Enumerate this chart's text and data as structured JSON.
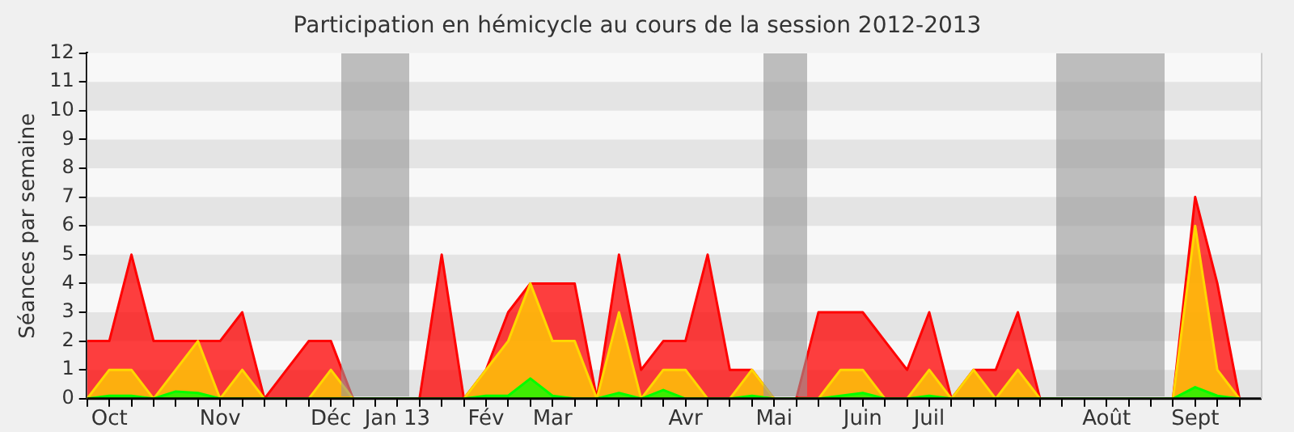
{
  "chart_data": {
    "type": "area",
    "title": "Participation en hémicycle au cours de la session 2012-2013",
    "ylabel": "Séances par semaine",
    "categories": [
      null,
      "Oct",
      null,
      null,
      null,
      null,
      "Nov",
      null,
      null,
      null,
      null,
      "Déc",
      null,
      null,
      "Jan 13",
      null,
      null,
      null,
      "Fév",
      null,
      null,
      "Mar",
      null,
      null,
      null,
      null,
      null,
      "Avr",
      null,
      null,
      null,
      "Mai",
      null,
      null,
      null,
      "Juin",
      null,
      null,
      "Juil",
      null,
      null,
      null,
      null,
      null,
      null,
      null,
      "Août",
      null,
      null,
      null,
      "Sept",
      null,
      null
    ],
    "series": [
      {
        "color": "#ff0000",
        "values": [
          2,
          2,
          5,
          2,
          2,
          2,
          2,
          3,
          0,
          1,
          2,
          2,
          0,
          0,
          0,
          0,
          5,
          0,
          1,
          3,
          4,
          4,
          4,
          0,
          5,
          1,
          2,
          2,
          5,
          1,
          1,
          0,
          0,
          3,
          3,
          3,
          2,
          1,
          3,
          0,
          1,
          1,
          3,
          0,
          0,
          0,
          0,
          0,
          0,
          0,
          7,
          4,
          0
        ]
      },
      {
        "color": "#ffd700",
        "values": [
          0,
          1,
          1,
          0,
          1,
          2,
          0,
          1,
          0,
          0,
          0,
          1,
          0,
          0,
          0,
          0,
          0,
          0,
          1,
          2,
          4,
          2,
          2,
          0,
          3,
          0,
          1,
          1,
          0,
          0,
          1,
          0,
          0,
          0,
          1,
          1,
          0,
          0,
          1,
          0,
          1,
          0,
          1,
          0,
          0,
          0,
          0,
          0,
          0,
          0,
          6,
          1,
          0
        ]
      },
      {
        "color": "#00ff00",
        "values": [
          0,
          0.1,
          0.1,
          0,
          0.25,
          0.2,
          0,
          0,
          0,
          0,
          0,
          0,
          0,
          0,
          0,
          0,
          0,
          0,
          0.1,
          0.1,
          0.7,
          0.1,
          0,
          0,
          0.2,
          0,
          0.3,
          0,
          0,
          0,
          0.1,
          0,
          0,
          0,
          0.1,
          0.2,
          0,
          0,
          0.1,
          0,
          0,
          0,
          0,
          0,
          0,
          0,
          0,
          0,
          0,
          0,
          0.4,
          0.1,
          0
        ]
      }
    ],
    "ylim": [
      0,
      12
    ],
    "yticks": [
      0,
      1,
      2,
      3,
      4,
      5,
      6,
      7,
      8,
      9,
      10,
      11,
      12
    ],
    "legend": false
  }
}
